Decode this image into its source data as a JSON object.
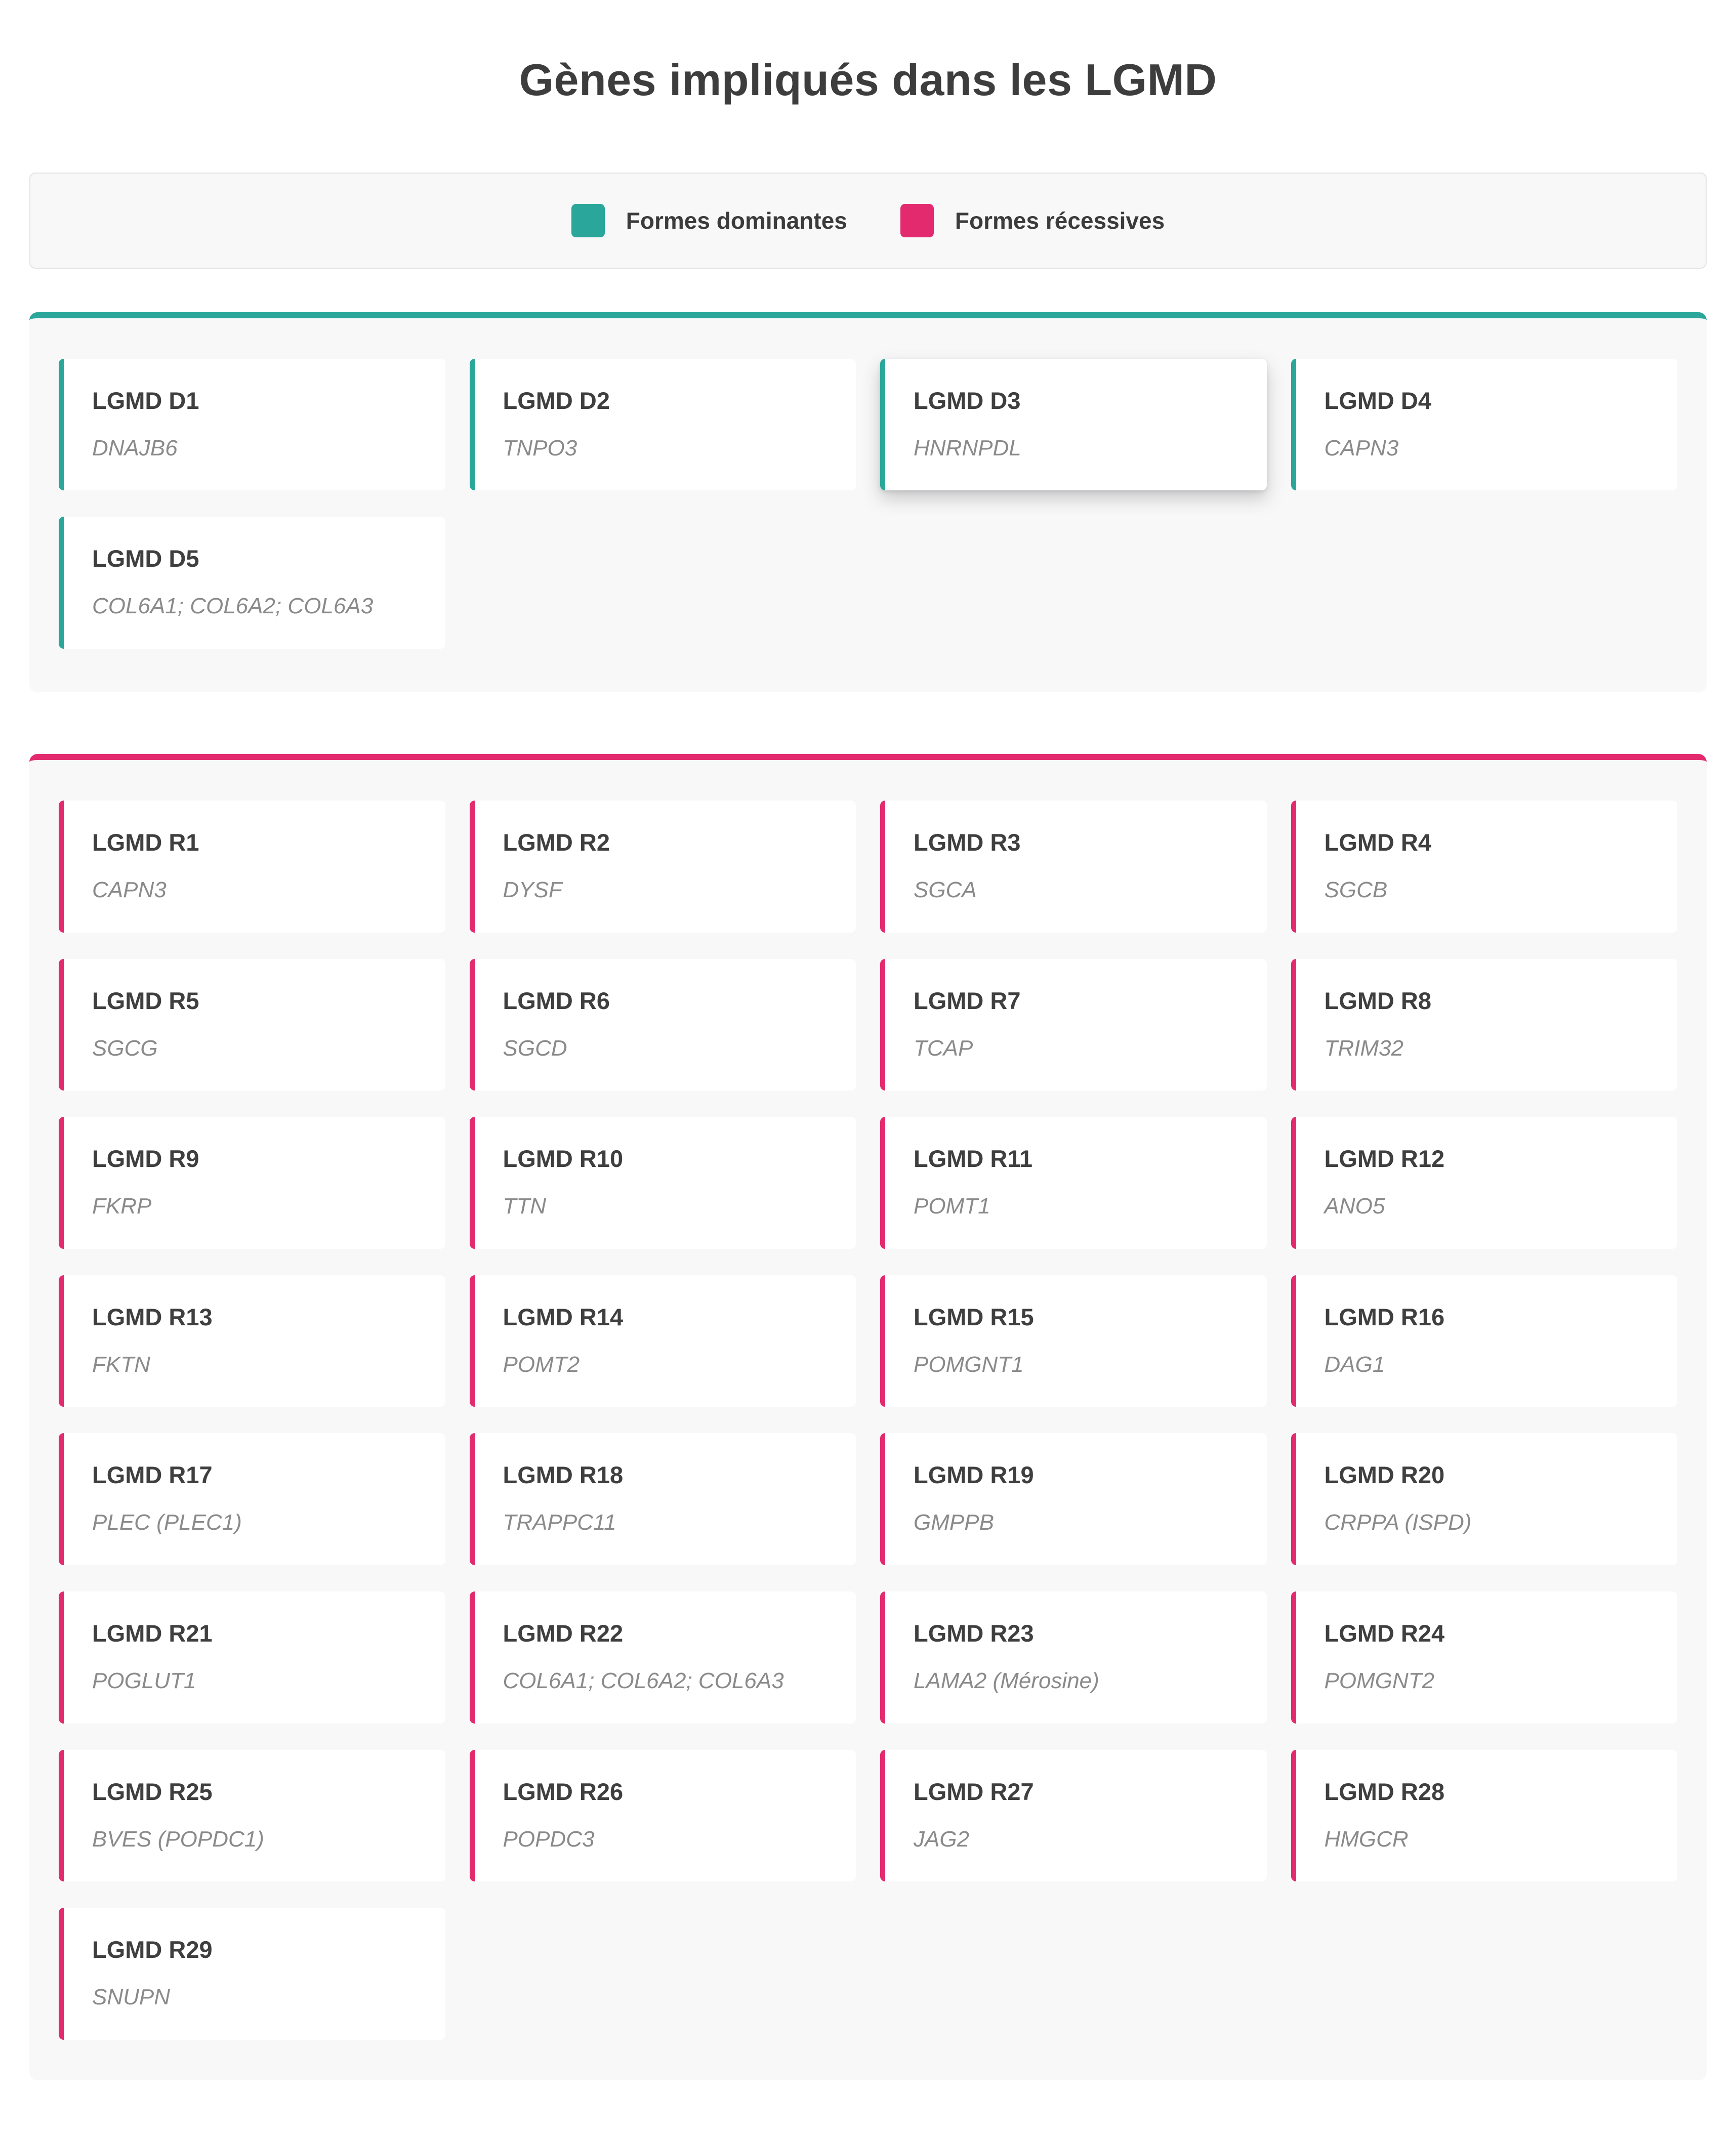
{
  "page": {
    "title": "Gènes impliqués dans les LGMD"
  },
  "legend": {
    "items": [
      {
        "label": "Formes dominantes",
        "color": "#2aa79a"
      },
      {
        "label": "Formes récessives",
        "color": "#e32a6e"
      }
    ]
  },
  "sections": [
    {
      "id": "dominant",
      "accent": "#2aa79a",
      "cards": [
        {
          "name": "LGMD D1",
          "genes": "DNAJB6"
        },
        {
          "name": "LGMD D2",
          "genes": "TNPO3"
        },
        {
          "name": "LGMD D3",
          "genes": "HNRNPDL",
          "highlighted": true
        },
        {
          "name": "LGMD D4",
          "genes": "CAPN3"
        },
        {
          "name": "LGMD D5",
          "genes": "COL6A1; COL6A2; COL6A3"
        }
      ]
    },
    {
      "id": "recessive",
      "accent": "#e32a6e",
      "cards": [
        {
          "name": "LGMD R1",
          "genes": "CAPN3"
        },
        {
          "name": "LGMD R2",
          "genes": "DYSF"
        },
        {
          "name": "LGMD R3",
          "genes": "SGCA"
        },
        {
          "name": "LGMD R4",
          "genes": "SGCB"
        },
        {
          "name": "LGMD R5",
          "genes": "SGCG"
        },
        {
          "name": "LGMD R6",
          "genes": "SGCD"
        },
        {
          "name": "LGMD R7",
          "genes": "TCAP"
        },
        {
          "name": "LGMD R8",
          "genes": "TRIM32"
        },
        {
          "name": "LGMD R9",
          "genes": "FKRP"
        },
        {
          "name": "LGMD R10",
          "genes": "TTN"
        },
        {
          "name": "LGMD R11",
          "genes": "POMT1"
        },
        {
          "name": "LGMD R12",
          "genes": "ANO5"
        },
        {
          "name": "LGMD R13",
          "genes": "FKTN"
        },
        {
          "name": "LGMD R14",
          "genes": "POMT2"
        },
        {
          "name": "LGMD R15",
          "genes": "POMGNT1"
        },
        {
          "name": "LGMD R16",
          "genes": "DAG1"
        },
        {
          "name": "LGMD R17",
          "genes": "PLEC (PLEC1)"
        },
        {
          "name": "LGMD R18",
          "genes": "TRAPPC11"
        },
        {
          "name": "LGMD R19",
          "genes": "GMPPB"
        },
        {
          "name": "LGMD R20",
          "genes": "CRPPA (ISPD)"
        },
        {
          "name": "LGMD R21",
          "genes": "POGLUT1"
        },
        {
          "name": "LGMD R22",
          "genes": "COL6A1; COL6A2; COL6A3"
        },
        {
          "name": "LGMD R23",
          "genes": "LAMA2 (Mérosine)"
        },
        {
          "name": "LGMD R24",
          "genes": "POMGNT2"
        },
        {
          "name": "LGMD R25",
          "genes": "BVES (POPDC1)"
        },
        {
          "name": "LGMD R26",
          "genes": "POPDC3"
        },
        {
          "name": "LGMD R27",
          "genes": "JAG2"
        },
        {
          "name": "LGMD R28",
          "genes": "HMGCR"
        },
        {
          "name": "LGMD R29",
          "genes": "SNUPN"
        }
      ]
    }
  ]
}
